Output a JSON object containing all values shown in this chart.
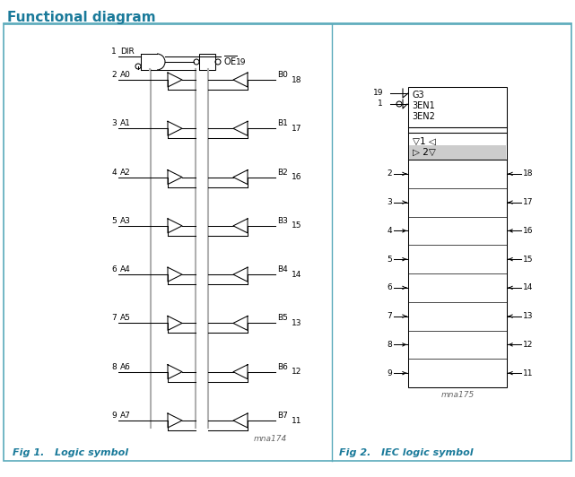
{
  "title": "Functional diagram",
  "title_color": "#1a7a9a",
  "title_fontsize": 11,
  "background_color": "#ffffff",
  "border_color": "#5aaabb",
  "fig1_label": "Fig 1.   Logic symbol",
  "fig2_label": "Fig 2.   IEC logic symbol",
  "fig1_note": "mna174",
  "fig2_note": "mna175",
  "line_color": "#000000",
  "gray_color": "#b0b0b0",
  "a_labels": [
    "A0",
    "A1",
    "A2",
    "A3",
    "A4",
    "A5",
    "A6",
    "A7"
  ],
  "b_labels": [
    "B0",
    "B1",
    "B2",
    "B3",
    "B4",
    "B5",
    "B6",
    "B7"
  ],
  "a_pins": [
    2,
    3,
    4,
    5,
    6,
    7,
    8,
    9
  ],
  "b_pins": [
    18,
    17,
    16,
    15,
    14,
    13,
    12,
    11
  ],
  "left_pins_iec": [
    2,
    3,
    4,
    5,
    6,
    7,
    8,
    9
  ],
  "right_pins_iec": [
    18,
    17,
    16,
    15,
    14,
    13,
    12,
    11
  ]
}
